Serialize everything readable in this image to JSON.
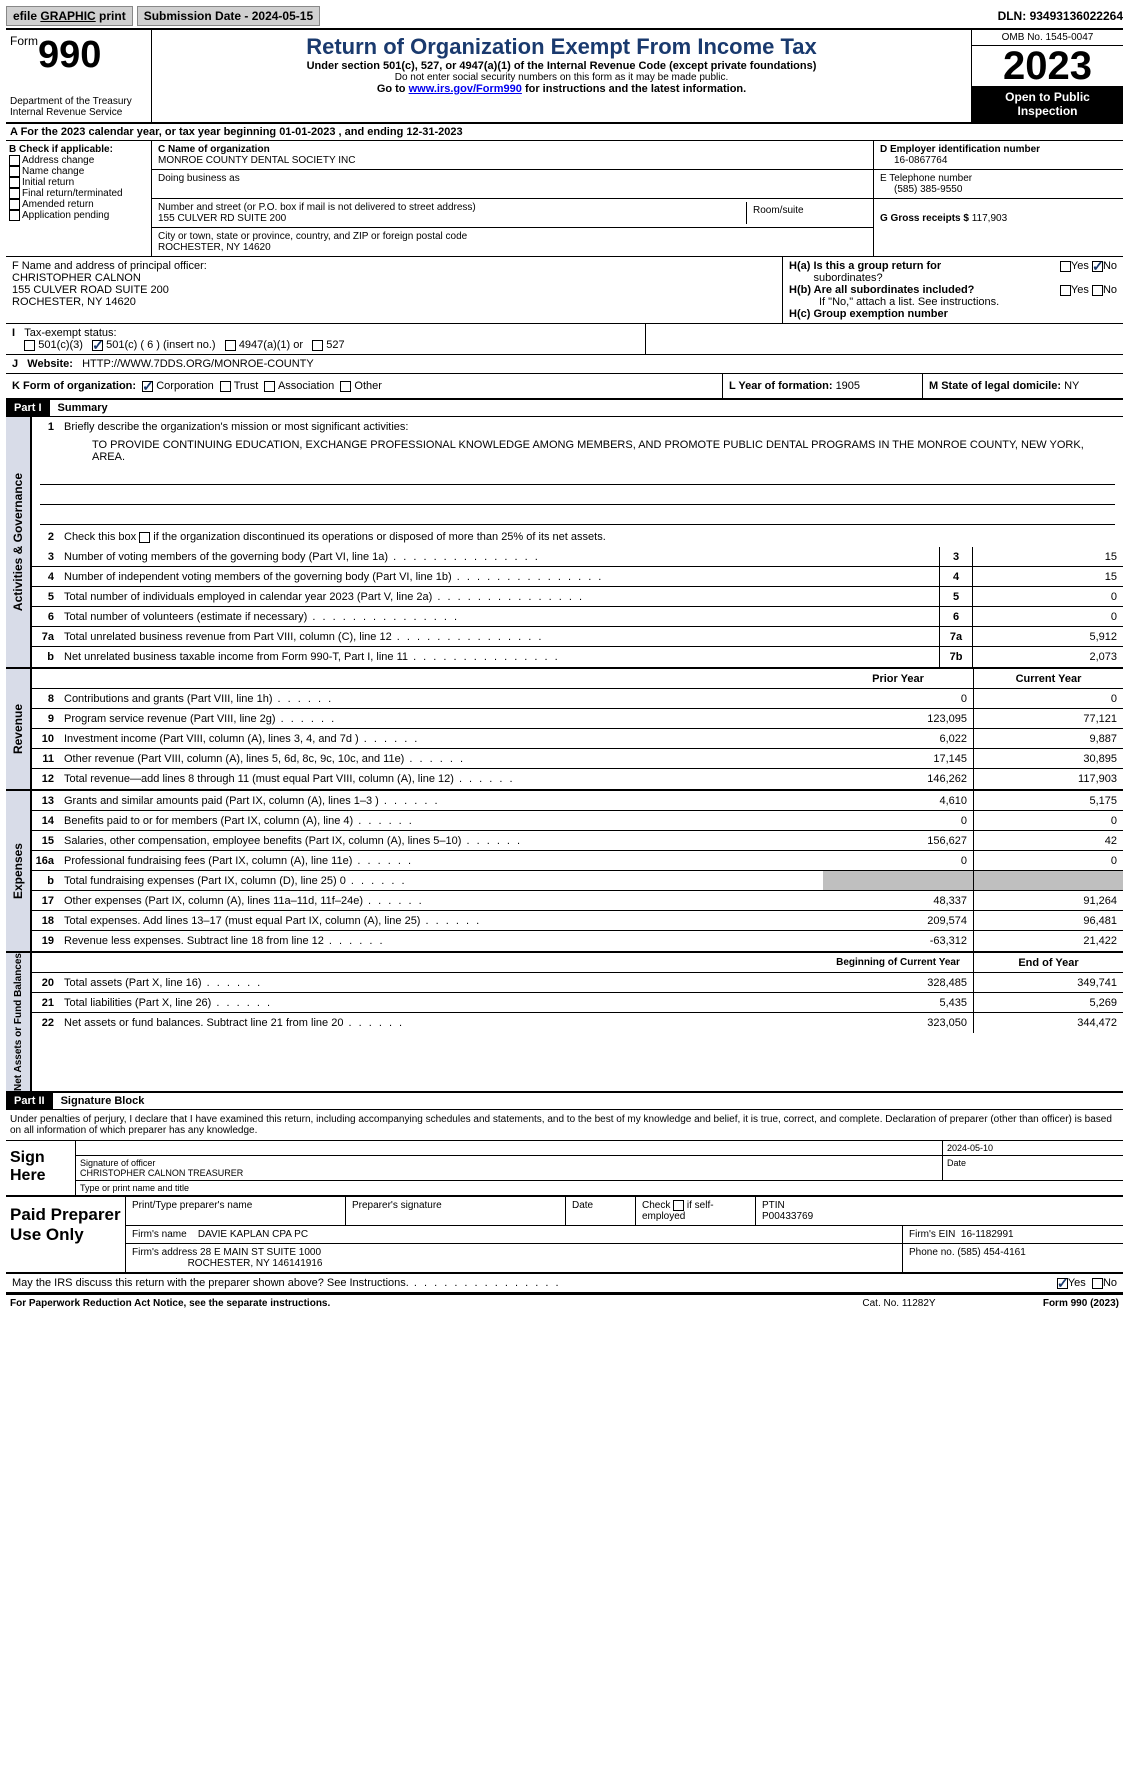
{
  "topbar": {
    "efile_prefix": "efile ",
    "efile_g": "GRAPHIC",
    "efile_p": " print",
    "sub_date_label": "Submission Date - ",
    "sub_date": "2024-05-15",
    "dln_label": "DLN: ",
    "dln": "93493136022264"
  },
  "header": {
    "form_word": "Form",
    "form_no": "990",
    "dept": "Department of the Treasury\nInternal Revenue Service",
    "title": "Return of Organization Exempt From Income Tax",
    "sub1": "Under section 501(c), 527, or 4947(a)(1) of the Internal Revenue Code (except private foundations)",
    "sub2": "Do not enter social security numbers on this form as it may be made public.",
    "goto_pre": "Go to ",
    "goto_link": "www.irs.gov/Form990",
    "goto_post": " for instructions and the latest information.",
    "omb": "OMB No. 1545-0047",
    "year": "2023",
    "open": "Open to Public Inspection"
  },
  "rowA": "A For the 2023 calendar year, or tax year beginning 01-01-2023   , and ending 12-31-2023",
  "boxB": {
    "title": "B Check if applicable:",
    "items": [
      "Address change",
      "Name change",
      "Initial return",
      "Final return/terminated",
      "Amended return",
      "Application pending"
    ]
  },
  "boxC": {
    "name_lbl": "C Name of organization",
    "name": "MONROE COUNTY DENTAL SOCIETY INC",
    "dba_lbl": "Doing business as",
    "addr_lbl": "Number and street (or P.O. box if mail is not delivered to street address)",
    "addr": "155 CULVER RD SUITE 200",
    "room_lbl": "Room/suite",
    "city_lbl": "City or town, state or province, country, and ZIP or foreign postal code",
    "city": "ROCHESTER, NY  14620"
  },
  "boxD": {
    "lbl": "D Employer identification number",
    "val": "16-0867764"
  },
  "boxE": {
    "lbl": "E Telephone number",
    "val": "(585) 385-9550"
  },
  "boxG": {
    "lbl": "G Gross receipts $ ",
    "val": "117,903"
  },
  "boxF": {
    "lbl": "F Name and address of principal officer:",
    "name": "CHRISTOPHER CALNON",
    "addr1": "155 CULVER ROAD SUITE 200",
    "addr2": "ROCHESTER, NY  14620"
  },
  "boxH": {
    "ha": "H(a)  Is this a group return for",
    "ha2": "subordinates?",
    "hb": "H(b)  Are all subordinates included?",
    "hbnote": "If \"No,\" attach a list. See instructions.",
    "hc": "H(c)  Group exemption number",
    "yes": "Yes",
    "no": "No"
  },
  "rowI": {
    "lbl": "Tax-exempt status:",
    "o1": "501(c)(3)",
    "o2": "501(c) ( 6 ) (insert no.)",
    "o3": "4947(a)(1) or",
    "o4": "527"
  },
  "rowJ": {
    "lbl": "Website:",
    "val": "HTTP://WWW.7DDS.ORG/MONROE-COUNTY"
  },
  "rowK": {
    "lbl": "K Form of organization:",
    "o1": "Corporation",
    "o2": "Trust",
    "o3": "Association",
    "o4": "Other",
    "l_lbl": "L Year of formation: ",
    "l_val": "1905",
    "m_lbl": "M State of legal domicile: ",
    "m_val": "NY"
  },
  "part1": {
    "hdr": "Part I",
    "title": "Summary"
  },
  "gov": {
    "side": "Activities & Governance",
    "l1_lbl": "Briefly describe the organization's mission or most significant activities:",
    "l1_txt": "TO PROVIDE CONTINUING EDUCATION, EXCHANGE PROFESSIONAL KNOWLEDGE AMONG MEMBERS, AND PROMOTE PUBLIC DENTAL PROGRAMS IN THE MONROE COUNTY, NEW YORK, AREA.",
    "l2": "Check this box      if the organization discontinued its operations or disposed of more than 25% of its net assets.",
    "lines": [
      {
        "n": "3",
        "t": "Number of voting members of the governing body (Part VI, line 1a)",
        "b": "3",
        "v": "15"
      },
      {
        "n": "4",
        "t": "Number of independent voting members of the governing body (Part VI, line 1b)",
        "b": "4",
        "v": "15"
      },
      {
        "n": "5",
        "t": "Total number of individuals employed in calendar year 2023 (Part V, line 2a)",
        "b": "5",
        "v": "0"
      },
      {
        "n": "6",
        "t": "Total number of volunteers (estimate if necessary)",
        "b": "6",
        "v": "0"
      },
      {
        "n": "7a",
        "t": "Total unrelated business revenue from Part VIII, column (C), line 12",
        "b": "7a",
        "v": "5,912"
      },
      {
        "n": "b",
        "t": "Net unrelated business taxable income from Form 990-T, Part I, line 11",
        "b": "7b",
        "v": "2,073"
      }
    ]
  },
  "rev": {
    "side": "Revenue",
    "hdr_prior": "Prior Year",
    "hdr_cur": "Current Year",
    "lines": [
      {
        "n": "8",
        "t": "Contributions and grants (Part VIII, line 1h)",
        "p": "0",
        "c": "0"
      },
      {
        "n": "9",
        "t": "Program service revenue (Part VIII, line 2g)",
        "p": "123,095",
        "c": "77,121"
      },
      {
        "n": "10",
        "t": "Investment income (Part VIII, column (A), lines 3, 4, and 7d )",
        "p": "6,022",
        "c": "9,887"
      },
      {
        "n": "11",
        "t": "Other revenue (Part VIII, column (A), lines 5, 6d, 8c, 9c, 10c, and 11e)",
        "p": "17,145",
        "c": "30,895"
      },
      {
        "n": "12",
        "t": "Total revenue—add lines 8 through 11 (must equal Part VIII, column (A), line 12)",
        "p": "146,262",
        "c": "117,903"
      }
    ]
  },
  "exp": {
    "side": "Expenses",
    "lines": [
      {
        "n": "13",
        "t": "Grants and similar amounts paid (Part IX, column (A), lines 1–3 )",
        "p": "4,610",
        "c": "5,175"
      },
      {
        "n": "14",
        "t": "Benefits paid to or for members (Part IX, column (A), line 4)",
        "p": "0",
        "c": "0"
      },
      {
        "n": "15",
        "t": "Salaries, other compensation, employee benefits (Part IX, column (A), lines 5–10)",
        "p": "156,627",
        "c": "42"
      },
      {
        "n": "16a",
        "t": "Professional fundraising fees (Part IX, column (A), line 11e)",
        "p": "0",
        "c": "0"
      },
      {
        "n": "b",
        "t": "Total fundraising expenses (Part IX, column (D), line 25) 0",
        "p": "",
        "c": "",
        "shade": true
      },
      {
        "n": "17",
        "t": "Other expenses (Part IX, column (A), lines 11a–11d, 11f–24e)",
        "p": "48,337",
        "c": "91,264"
      },
      {
        "n": "18",
        "t": "Total expenses. Add lines 13–17 (must equal Part IX, column (A), line 25)",
        "p": "209,574",
        "c": "96,481"
      },
      {
        "n": "19",
        "t": "Revenue less expenses. Subtract line 18 from line 12",
        "p": "-63,312",
        "c": "21,422"
      }
    ]
  },
  "net": {
    "side": "Net Assets or Fund Balances",
    "hdr_beg": "Beginning of Current Year",
    "hdr_end": "End of Year",
    "lines": [
      {
        "n": "20",
        "t": "Total assets (Part X, line 16)",
        "p": "328,485",
        "c": "349,741"
      },
      {
        "n": "21",
        "t": "Total liabilities (Part X, line 26)",
        "p": "5,435",
        "c": "5,269"
      },
      {
        "n": "22",
        "t": "Net assets or fund balances. Subtract line 21 from line 20",
        "p": "323,050",
        "c": "344,472"
      }
    ]
  },
  "part2": {
    "hdr": "Part II",
    "title": "Signature Block"
  },
  "sig": {
    "decl": "Under penalties of perjury, I declare that I have examined this return, including accompanying schedules and statements, and to the best of my knowledge and belief, it is true, correct, and complete. Declaration of preparer (other than officer) is based on all information of which preparer has any knowledge.",
    "sign_here": "Sign Here",
    "sig_lbl": "Signature of officer",
    "name": "CHRISTOPHER CALNON  TREASURER",
    "type_lbl": "Type or print name and title",
    "date_lbl": "Date",
    "date": "2024-05-10"
  },
  "prep": {
    "title": "Paid Preparer Use Only",
    "h1": "Print/Type preparer's name",
    "h2": "Preparer's signature",
    "h3": "Date",
    "h4": "Check       if self-employed",
    "h5_lbl": "PTIN",
    "h5": "P00433769",
    "firm_lbl": "Firm's name",
    "firm": "DAVIE KAPLAN CPA PC",
    "ein_lbl": "Firm's EIN",
    "ein": "16-1182991",
    "addr_lbl": "Firm's address",
    "addr1": "28 E MAIN ST SUITE 1000",
    "addr2": "ROCHESTER, NY  146141916",
    "phone_lbl": "Phone no.",
    "phone": "(585) 454-4161"
  },
  "discuss": {
    "txt": "May the IRS discuss this return with the preparer shown above? See Instructions.",
    "yes": "Yes",
    "no": "No"
  },
  "footer": {
    "f1": "For Paperwork Reduction Act Notice, see the separate instructions.",
    "f2": "Cat. No. 11282Y",
    "f3_pre": "Form ",
    "f3_b": "990",
    "f3_post": " (2023)"
  }
}
